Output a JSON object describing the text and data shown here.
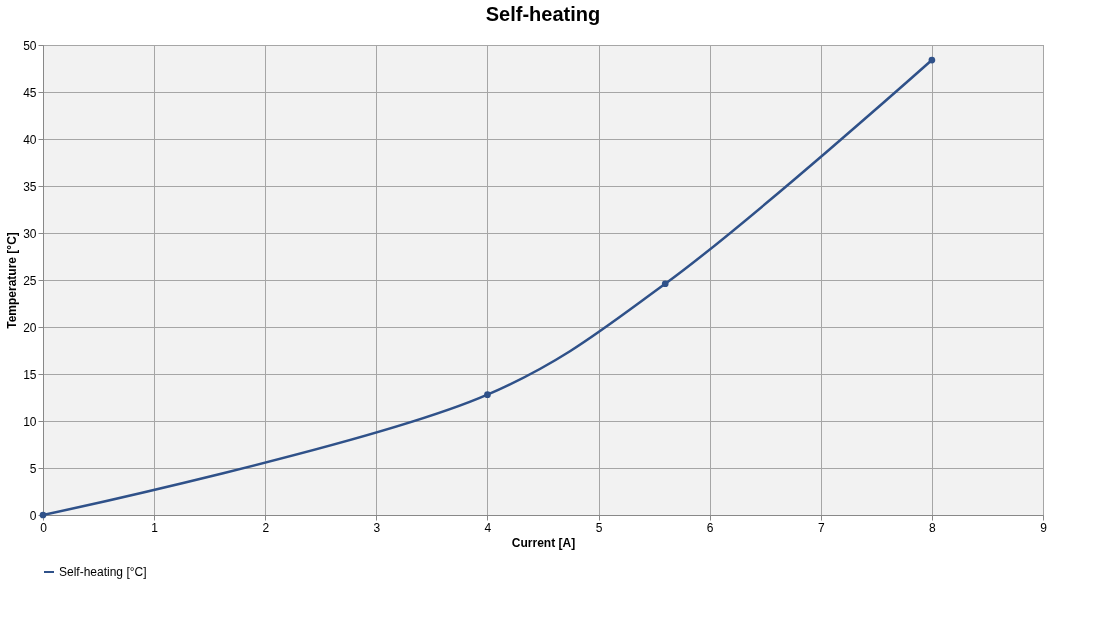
{
  "chart_data": {
    "type": "line",
    "title": "Self-heating",
    "xlabel": "Current [A]",
    "ylabel": "Temperature [°C]",
    "x": [
      0,
      4,
      5.6,
      8
    ],
    "series": [
      {
        "name": "Self-heating [°C]",
        "color": "#2f5189",
        "values": [
          0,
          12.8,
          24.6,
          48.4
        ]
      }
    ],
    "xlim": [
      0,
      9
    ],
    "xticks": [
      0,
      1,
      2,
      3,
      4,
      5,
      6,
      7,
      8,
      9
    ],
    "ylim": [
      0,
      50
    ],
    "yticks": [
      0,
      5,
      10,
      15,
      20,
      25,
      30,
      35,
      40,
      45,
      50
    ],
    "grid": true,
    "legend": "bottom",
    "marker": "circle",
    "line_style": "solid"
  }
}
